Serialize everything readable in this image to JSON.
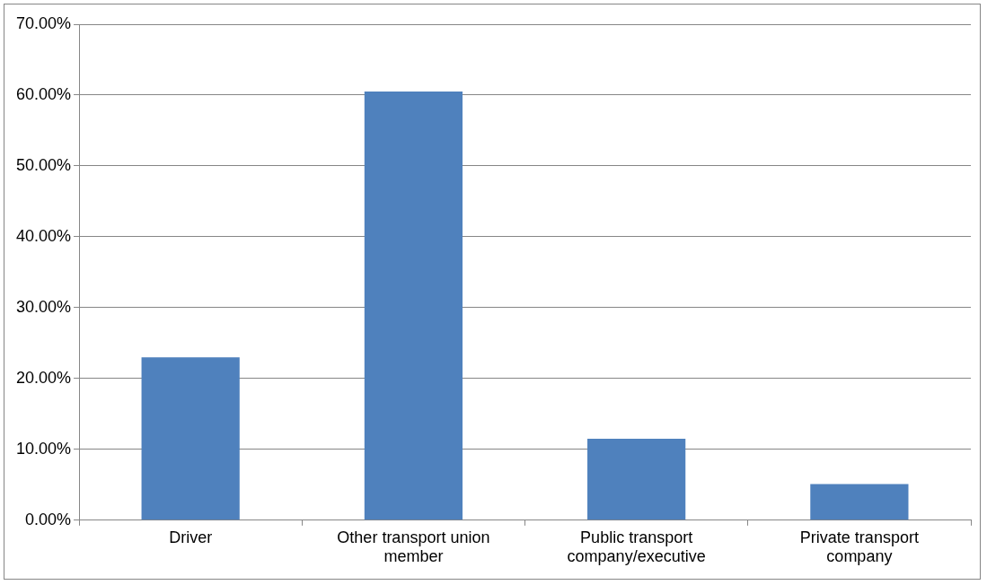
{
  "chart_data": {
    "type": "bar",
    "categories": [
      "Driver",
      "Other transport union member",
      "Public transport company/executive",
      "Private transport company"
    ],
    "values": [
      23,
      60.5,
      11.5,
      5.1
    ],
    "color": "#4f81bd",
    "ylim": [
      0,
      70
    ],
    "yticks": [
      {
        "value": 0,
        "label": "0.00%"
      },
      {
        "value": 10,
        "label": "10.00%"
      },
      {
        "value": 20,
        "label": "20.00%"
      },
      {
        "value": 30,
        "label": "30.00%"
      },
      {
        "value": 40,
        "label": "40.00%"
      },
      {
        "value": 50,
        "label": "50.00%"
      },
      {
        "value": 60,
        "label": "60.00%"
      },
      {
        "value": 70,
        "label": "70.00%"
      }
    ],
    "grid": "y"
  }
}
